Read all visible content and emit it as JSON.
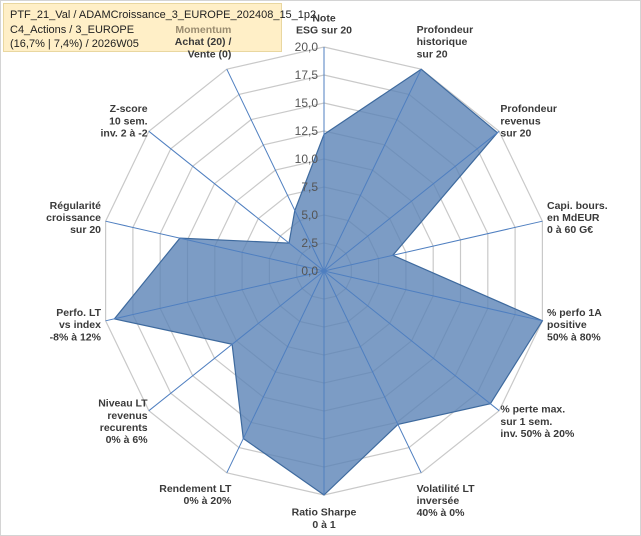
{
  "title_lines": [
    "PTF_21_Val / ADAMCroissance_3_EUROPE_202408_15_1p2",
    "C4_Actions / 3_EUROPE",
    "(16,7% | 7,4%) / 2026W05"
  ],
  "chart_data": {
    "type": "radar",
    "rmin": 0,
    "rmax": 20,
    "tick_step": 2.5,
    "tick_labels": [
      "0,0",
      "2,5",
      "5,0",
      "7,5",
      "10,0",
      "12,5",
      "15,0",
      "17,5",
      "20,0"
    ],
    "axes": [
      {
        "lines": [
          "Note",
          "ESG sur 20"
        ],
        "value": 12.2
      },
      {
        "lines": [
          "Profondeur",
          "historique",
          "sur 20"
        ],
        "value": 20.0
      },
      {
        "lines": [
          "Profondeur",
          "revenus",
          "sur 20"
        ],
        "value": 19.8
      },
      {
        "lines": [
          "Capi. bours.",
          "en MdEUR",
          "0 à 60 G€"
        ],
        "value": 6.3
      },
      {
        "lines": [
          "% perfo 1A",
          "positive",
          "50% à 80%"
        ],
        "value": 20.0
      },
      {
        "lines": [
          "% perte max.",
          "sur 1 sem.",
          "inv. 50% à 20%"
        ],
        "value": 19.0
      },
      {
        "lines": [
          "Volatilité LT",
          "inversée",
          "40% à 0%"
        ],
        "value": 15.2
      },
      {
        "lines": [
          "Ratio Sharpe",
          "0 à 1"
        ],
        "value": 20.0
      },
      {
        "lines": [
          "Rendement LT",
          "0% à 20%"
        ],
        "value": 16.6
      },
      {
        "lines": [
          "Niveau LT",
          "revenus",
          "recurents",
          "0% à 6%"
        ],
        "value": 10.5
      },
      {
        "lines": [
          "Perfo. LT",
          "vs index",
          "-8% à 12%"
        ],
        "value": 19.2
      },
      {
        "lines": [
          "Régularité",
          "croissance",
          "sur 20"
        ],
        "value": 13.2
      },
      {
        "lines": [
          "Z-score",
          "10 sem.",
          "inv. 2 à -2"
        ],
        "value": 4.0
      },
      {
        "lines": [
          "Momentum",
          "Achat (20) /",
          "Vente (0)"
        ],
        "value": 6.0,
        "first_line_color": "#9a8c70"
      }
    ],
    "colors": {
      "fill": "#5b83b6",
      "fill_opacity": 0.8,
      "outline": "#3e6a9e",
      "grid": "#c9c9c9",
      "spoke": "#4f7fc0"
    }
  }
}
